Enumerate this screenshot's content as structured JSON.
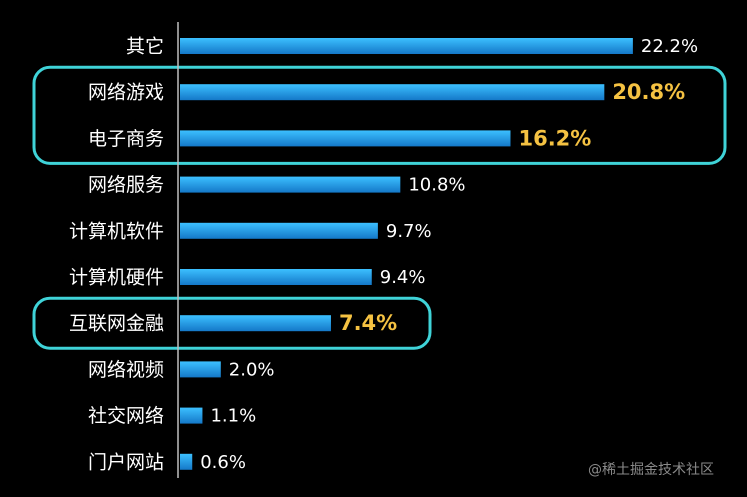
{
  "chart_data": {
    "type": "bar",
    "orientation": "horizontal",
    "categories": [
      "其它",
      "网络游戏",
      "电子商务",
      "网络服务",
      "计算机软件",
      "计算机硬件",
      "互联网金融",
      "网络视频",
      "社交网络",
      "门户网站"
    ],
    "values": [
      22.2,
      20.8,
      16.2,
      10.8,
      9.7,
      9.4,
      7.4,
      2.0,
      1.1,
      0.6
    ],
    "value_labels": [
      "22.2%",
      "20.8%",
      "16.2%",
      "10.8%",
      "9.7%",
      "9.4%",
      "7.4%",
      "2.0%",
      "1.1%",
      "0.6%"
    ],
    "highlighted": [
      "网络游戏",
      "电子商务",
      "互联网金融"
    ],
    "title": "",
    "xlabel": "",
    "ylabel": "",
    "grid": false,
    "legend": "none"
  },
  "colors": {
    "background": "#000000",
    "bar": "#1fa3e6",
    "highlight_box": "#3fd3d8",
    "highlight_text": "#f5c242",
    "axis": "#bfbfbf"
  },
  "watermark": "@稀土掘金技术社区"
}
